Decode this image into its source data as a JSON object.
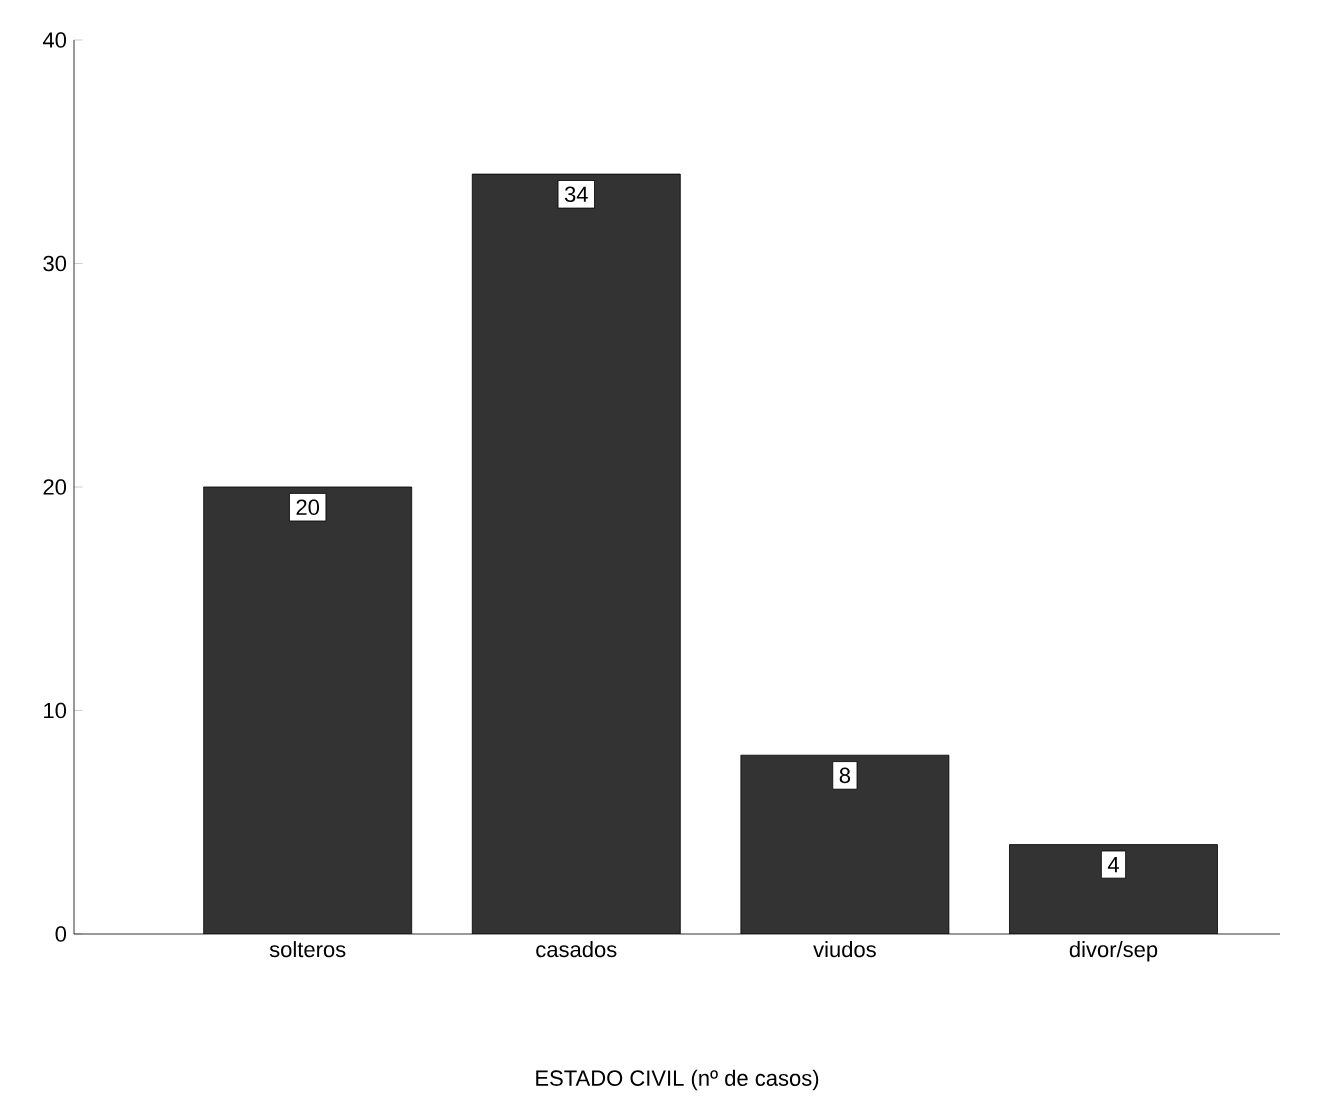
{
  "chart_data": {
    "type": "bar",
    "xlabel": "ESTADO CIVIL (nº de casos)",
    "categories": [
      "solteros",
      "casados",
      "viudos",
      "divor/sep"
    ],
    "values": [
      20,
      34,
      8,
      4
    ],
    "color": "#333333",
    "ylim": [
      0,
      40
    ],
    "yticks": [
      0,
      10,
      20,
      30,
      40
    ],
    "data_labels": true
  }
}
